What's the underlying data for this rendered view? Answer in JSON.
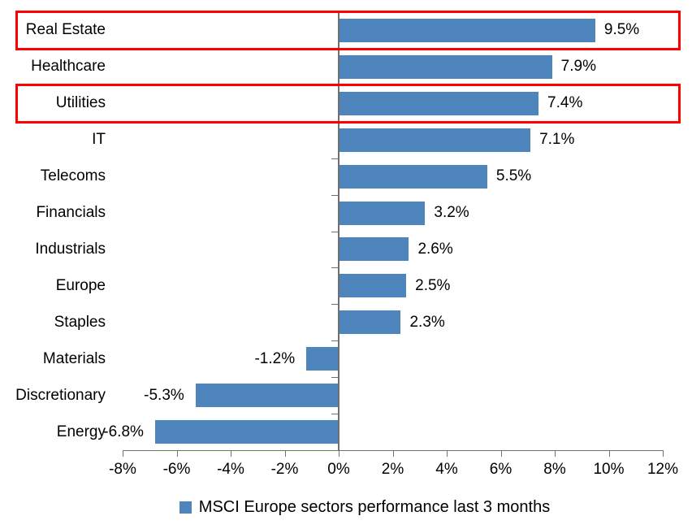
{
  "chart_data": {
    "type": "bar",
    "orientation": "horizontal",
    "title": "",
    "legend": "MSCI Europe sectors performance last 3 months",
    "legend_position": "bottom",
    "grid": "off",
    "categories": [
      "Real Estate",
      "Healthcare",
      "Utilities",
      "IT",
      "Telecoms",
      "Financials",
      "Industrials",
      "Europe",
      "Staples",
      "Materials",
      "Discretionary",
      "Energy"
    ],
    "values": [
      9.5,
      7.9,
      7.4,
      7.1,
      5.5,
      3.2,
      2.6,
      2.5,
      2.3,
      -1.2,
      -5.3,
      -6.8
    ],
    "data_labels": [
      "9.5%",
      "7.9%",
      "7.4%",
      "7.1%",
      "5.5%",
      "3.2%",
      "2.6%",
      "2.5%",
      "2.3%",
      "-1.2%",
      "-5.3%",
      "-6.8%"
    ],
    "xlim": [
      -8,
      12
    ],
    "x_tick_labels": [
      "-8%",
      "-6%",
      "-4%",
      "-2%",
      "0%",
      "2%",
      "4%",
      "6%",
      "8%",
      "10%",
      "12%"
    ],
    "highlighted_categories": [
      "Real Estate",
      "Utilities"
    ],
    "colors": {
      "bar": "#4E85BD",
      "highlight_box": "#FF0000",
      "axis": "#707070",
      "text": "#000000",
      "background": "#FFFFFF"
    }
  }
}
